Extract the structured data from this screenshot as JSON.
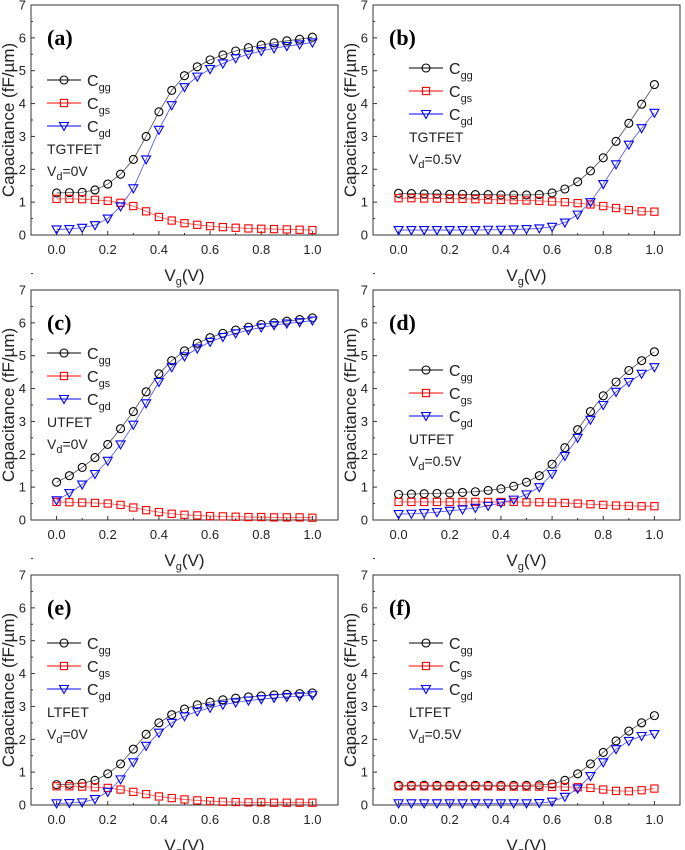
{
  "chart_data": {
    "type": "line",
    "x": [
      0,
      0.05,
      0.1,
      0.15,
      0.2,
      0.25,
      0.3,
      0.35,
      0.4,
      0.45,
      0.5,
      0.55,
      0.6,
      0.65,
      0.7,
      0.75,
      0.8,
      0.85,
      0.9,
      0.95,
      1.0
    ],
    "xlabel": {
      "main": "V",
      "sub": "g",
      "tail": "(V)"
    },
    "ylabel": "Capacitance (fF/µm)",
    "xlim": [
      -0.1,
      1.1
    ],
    "ylim": [
      0,
      7
    ],
    "xticks": [
      "0.0",
      "0.2",
      "0.4",
      "0.6",
      "0.8",
      "1.0"
    ],
    "yticks": [
      "0",
      "1",
      "2",
      "3",
      "4",
      "5",
      "6",
      "7"
    ],
    "grid": false,
    "legend_placement": "upper-left",
    "series_styles": [
      {
        "name_main": "C",
        "name_sub": "gg",
        "color": "#000000",
        "marker": "circle"
      },
      {
        "name_main": "C",
        "name_sub": "gs",
        "color": "#ff0000",
        "marker": "square"
      },
      {
        "name_main": "C",
        "name_sub": "gd",
        "color": "#0000ff",
        "marker": "triangle-down"
      }
    ],
    "panels": [
      {
        "label": "(a)",
        "device": "TGTFET",
        "vd_main": "V",
        "vd_sub": "d",
        "vd_tail": "=0V",
        "series": [
          {
            "name": "Cgg",
            "values": [
              1.28,
              1.29,
              1.3,
              1.37,
              1.55,
              1.85,
              2.3,
              3.0,
              3.75,
              4.4,
              4.85,
              5.12,
              5.33,
              5.48,
              5.6,
              5.7,
              5.78,
              5.85,
              5.91,
              5.96,
              6.02
            ]
          },
          {
            "name": "Cgs",
            "values": [
              1.1,
              1.1,
              1.09,
              1.07,
              1.04,
              0.98,
              0.88,
              0.72,
              0.55,
              0.44,
              0.36,
              0.31,
              0.27,
              0.24,
              0.22,
              0.2,
              0.19,
              0.18,
              0.17,
              0.16,
              0.15
            ]
          },
          {
            "name": "Cgd",
            "values": [
              0.17,
              0.18,
              0.22,
              0.3,
              0.5,
              0.87,
              1.42,
              2.3,
              3.2,
              3.95,
              4.5,
              4.82,
              5.05,
              5.22,
              5.38,
              5.5,
              5.6,
              5.68,
              5.75,
              5.8,
              5.86
            ]
          }
        ]
      },
      {
        "label": "(b)",
        "device": "TGTFET",
        "vd_main": "V",
        "vd_sub": "d",
        "vd_tail": "=0.5V",
        "series": [
          {
            "name": "Cgg",
            "values": [
              1.27,
              1.26,
              1.25,
              1.25,
              1.24,
              1.24,
              1.23,
              1.23,
              1.22,
              1.22,
              1.22,
              1.23,
              1.28,
              1.4,
              1.62,
              1.95,
              2.35,
              2.85,
              3.4,
              3.98,
              4.58
            ]
          },
          {
            "name": "Cgs",
            "values": [
              1.12,
              1.12,
              1.11,
              1.11,
              1.1,
              1.1,
              1.09,
              1.08,
              1.07,
              1.06,
              1.05,
              1.04,
              1.02,
              1.0,
              0.97,
              0.93,
              0.88,
              0.82,
              0.76,
              0.72,
              0.71
            ]
          },
          {
            "name": "Cgd",
            "values": [
              0.15,
              0.15,
              0.15,
              0.15,
              0.15,
              0.15,
              0.15,
              0.16,
              0.16,
              0.17,
              0.18,
              0.2,
              0.25,
              0.38,
              0.62,
              1.0,
              1.55,
              2.15,
              2.75,
              3.25,
              3.72
            ]
          }
        ]
      },
      {
        "label": "(c)",
        "device": "UTFET",
        "vd_main": "V",
        "vd_sub": "d",
        "vd_tail": "=0V",
        "series": [
          {
            "name": "Cgg",
            "values": [
              1.15,
              1.35,
              1.6,
              1.9,
              2.3,
              2.78,
              3.3,
              3.9,
              4.45,
              4.85,
              5.15,
              5.38,
              5.55,
              5.68,
              5.78,
              5.87,
              5.95,
              6.0,
              6.05,
              6.1,
              6.15
            ]
          },
          {
            "name": "Cgs",
            "values": [
              0.55,
              0.54,
              0.53,
              0.52,
              0.5,
              0.46,
              0.38,
              0.3,
              0.24,
              0.19,
              0.16,
              0.14,
              0.12,
              0.11,
              0.1,
              0.09,
              0.09,
              0.08,
              0.08,
              0.08,
              0.07
            ]
          },
          {
            "name": "Cgd",
            "values": [
              0.6,
              0.82,
              1.08,
              1.4,
              1.8,
              2.3,
              2.9,
              3.55,
              4.2,
              4.65,
              4.98,
              5.22,
              5.42,
              5.57,
              5.68,
              5.78,
              5.86,
              5.93,
              5.98,
              6.02,
              6.07
            ]
          }
        ]
      },
      {
        "label": "(d)",
        "device": "UTFET",
        "vd_main": "V",
        "vd_sub": "d",
        "vd_tail": "=0.5V",
        "series": [
          {
            "name": "Cgg",
            "values": [
              0.78,
              0.79,
              0.8,
              0.81,
              0.82,
              0.84,
              0.86,
              0.9,
              0.95,
              1.03,
              1.15,
              1.35,
              1.7,
              2.2,
              2.75,
              3.3,
              3.78,
              4.2,
              4.55,
              4.85,
              5.12
            ]
          },
          {
            "name": "Cgs",
            "values": [
              0.55,
              0.55,
              0.55,
              0.55,
              0.55,
              0.55,
              0.55,
              0.55,
              0.55,
              0.55,
              0.54,
              0.54,
              0.53,
              0.52,
              0.5,
              0.48,
              0.46,
              0.44,
              0.43,
              0.42,
              0.42
            ]
          },
          {
            "name": "Cgd",
            "values": [
              0.18,
              0.19,
              0.21,
              0.24,
              0.28,
              0.32,
              0.37,
              0.43,
              0.52,
              0.62,
              0.78,
              1.0,
              1.4,
              1.95,
              2.5,
              3.05,
              3.5,
              3.9,
              4.2,
              4.45,
              4.65
            ]
          }
        ]
      },
      {
        "label": "(e)",
        "device": "LTFET",
        "vd_main": "V",
        "vd_sub": "d",
        "vd_tail": "=0V",
        "series": [
          {
            "name": "Cgg",
            "values": [
              0.62,
              0.63,
              0.66,
              0.75,
              0.95,
              1.25,
              1.7,
              2.15,
              2.5,
              2.75,
              2.92,
              3.05,
              3.13,
              3.2,
              3.25,
              3.29,
              3.32,
              3.35,
              3.37,
              3.39,
              3.41
            ]
          },
          {
            "name": "Cgs",
            "values": [
              0.57,
              0.57,
              0.56,
              0.54,
              0.52,
              0.47,
              0.4,
              0.33,
              0.26,
              0.21,
              0.17,
              0.14,
              0.12,
              0.1,
              0.09,
              0.08,
              0.08,
              0.07,
              0.07,
              0.07,
              0.07
            ]
          },
          {
            "name": "Cgd",
            "values": [
              0.05,
              0.06,
              0.08,
              0.18,
              0.4,
              0.78,
              1.3,
              1.8,
              2.2,
              2.5,
              2.7,
              2.85,
              2.96,
              3.05,
              3.12,
              3.18,
              3.22,
              3.26,
              3.29,
              3.31,
              3.34
            ]
          }
        ]
      },
      {
        "label": "(f)",
        "device": "LTFET",
        "vd_main": "V",
        "vd_sub": "d",
        "vd_tail": "=0.5V",
        "series": [
          {
            "name": "Cgg",
            "values": [
              0.6,
              0.6,
              0.6,
              0.6,
              0.6,
              0.6,
              0.6,
              0.6,
              0.6,
              0.6,
              0.6,
              0.61,
              0.64,
              0.75,
              0.95,
              1.25,
              1.6,
              1.95,
              2.25,
              2.5,
              2.72
            ]
          },
          {
            "name": "Cgs",
            "values": [
              0.57,
              0.57,
              0.57,
              0.57,
              0.57,
              0.57,
              0.57,
              0.57,
              0.56,
              0.56,
              0.56,
              0.56,
              0.55,
              0.55,
              0.54,
              0.52,
              0.47,
              0.43,
              0.42,
              0.45,
              0.5
            ]
          },
          {
            "name": "Cgd",
            "values": [
              0.05,
              0.05,
              0.05,
              0.05,
              0.05,
              0.05,
              0.05,
              0.05,
              0.05,
              0.05,
              0.05,
              0.06,
              0.1,
              0.25,
              0.5,
              0.88,
              1.3,
              1.7,
              1.95,
              2.1,
              2.16
            ]
          }
        ]
      }
    ]
  }
}
